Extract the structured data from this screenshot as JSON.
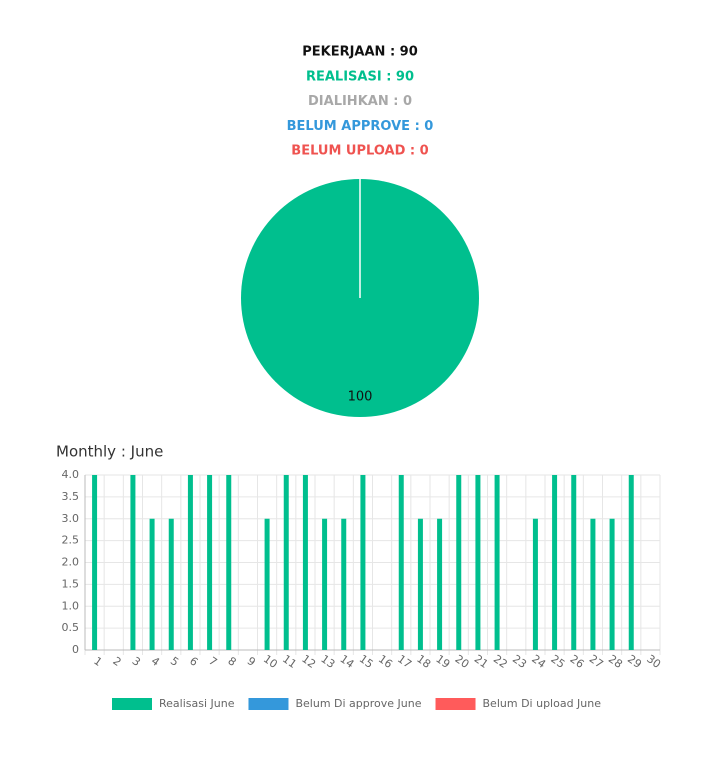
{
  "summary": [
    {
      "text": "PEKERJAAN : 90",
      "color": "#111111"
    },
    {
      "text": "REALISASI : 90",
      "color": "#00bf8e"
    },
    {
      "text": "DIALIHKAN : 0",
      "color": "#a8a8a8"
    },
    {
      "text": "BELUM APPROVE : 0",
      "color": "#3498db"
    },
    {
      "text": "BELUM UPLOAD : 0",
      "color": "#ef5350"
    }
  ],
  "chart_data": [
    {
      "type": "pie",
      "values": [
        100
      ],
      "colors": [
        "#00bf8e"
      ]
    },
    {
      "type": "bar",
      "title": "Monthly : June",
      "categories": [
        "1",
        "2",
        "3",
        "4",
        "5",
        "6",
        "7",
        "8",
        "9",
        "10",
        "11",
        "12",
        "13",
        "14",
        "15",
        "16",
        "17",
        "18",
        "19",
        "20",
        "21",
        "22",
        "23",
        "24",
        "25",
        "26",
        "27",
        "28",
        "29",
        "30"
      ],
      "series": [
        {
          "name": "Realisasi June",
          "color": "#00bf8e",
          "values": [
            4,
            0,
            4,
            3,
            3,
            4,
            4,
            4,
            0,
            3,
            4,
            4,
            3,
            3,
            4,
            0,
            4,
            3,
            3,
            4,
            4,
            4,
            0,
            3,
            4,
            4,
            3,
            3,
            4,
            0
          ]
        },
        {
          "name": "Belum Di approve June",
          "color": "#3498db",
          "values": [
            0,
            0,
            0,
            0,
            0,
            0,
            0,
            0,
            0,
            0,
            0,
            0,
            0,
            0,
            0,
            0,
            0,
            0,
            0,
            0,
            0,
            0,
            0,
            0,
            0,
            0,
            0,
            0,
            0,
            0
          ]
        },
        {
          "name": "Belum Di upload June",
          "color": "#ff5b5b",
          "values": [
            0,
            0,
            0,
            0,
            0,
            0,
            0,
            0,
            0,
            0,
            0,
            0,
            0,
            0,
            0,
            0,
            0,
            0,
            0,
            0,
            0,
            0,
            0,
            0,
            0,
            0,
            0,
            0,
            0,
            0
          ]
        }
      ],
      "ylim": [
        0,
        4
      ],
      "yticks": [
        0,
        0.5,
        {
          "value": 1,
          "label": "1.0"
        },
        1.5,
        {
          "value": 2,
          "label": "2.0"
        },
        2.5,
        {
          "value": 3,
          "label": "3.0"
        },
        3.5,
        {
          "value": 4,
          "label": "4.0"
        }
      ],
      "grid": true,
      "legend": "bottom"
    }
  ]
}
